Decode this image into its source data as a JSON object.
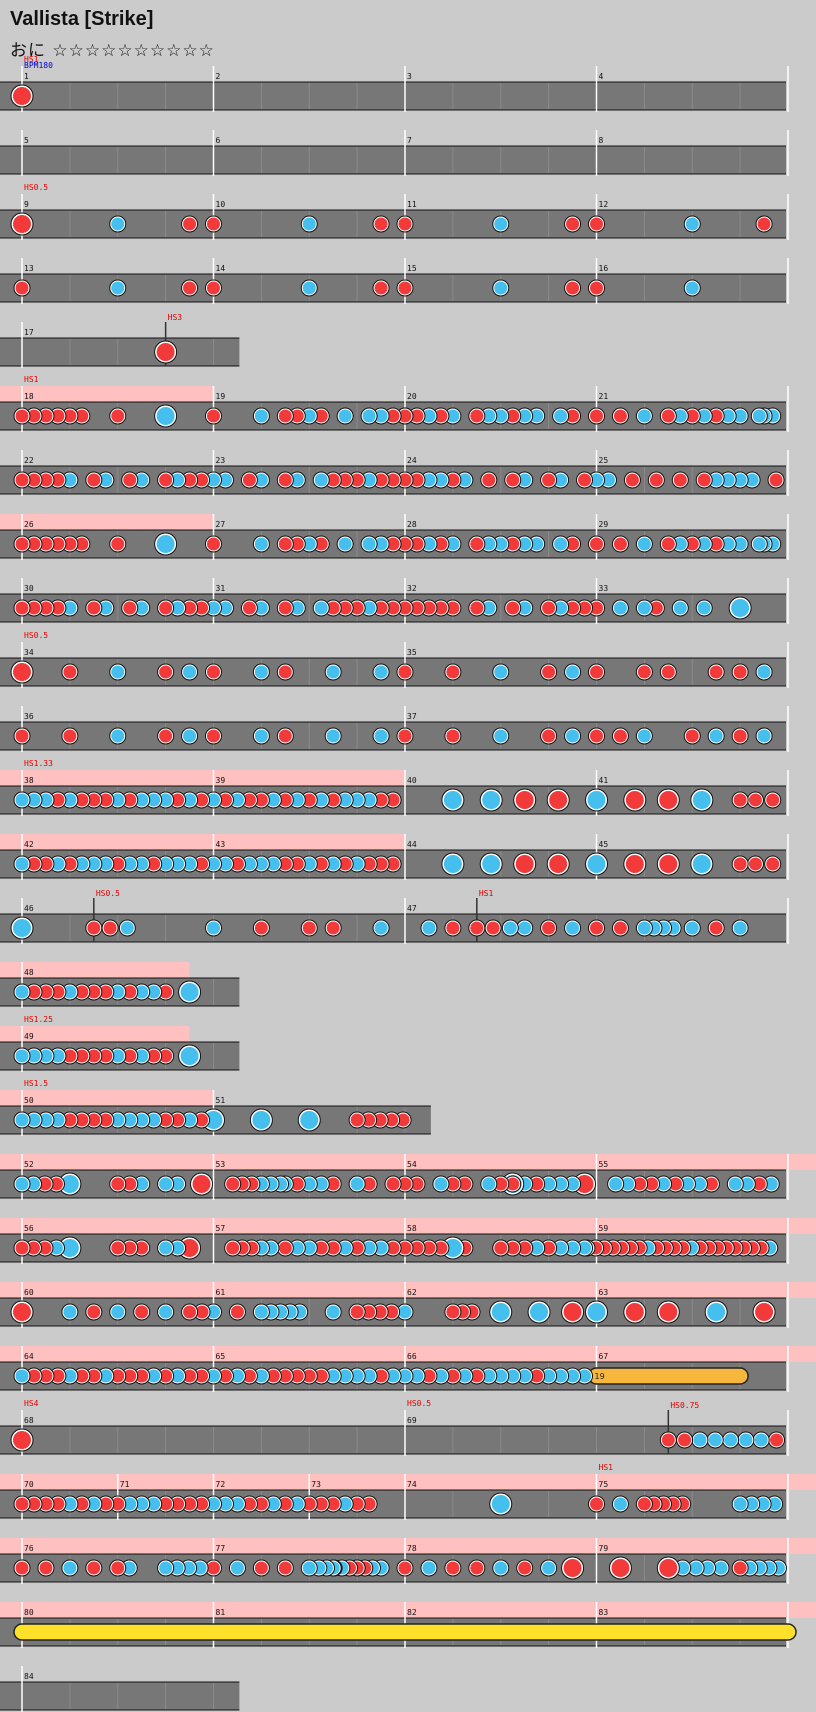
{
  "song": {
    "title": "Vallista [Strike]",
    "difficulty_label": "おに",
    "stars": "☆☆☆☆☆☆☆☆☆☆"
  },
  "colors": {
    "background": "#cbcbcb",
    "lane": "#777777",
    "don": "#f33a3a",
    "ka": "#44bfee",
    "gogo": "#ffc0c0",
    "drumroll": "#f6b73c",
    "balloon": "#ffe02a",
    "scroll_label": "#e00000",
    "bpm_label": "#0000cc"
  },
  "notes_legend": {
    "don": "red",
    "ka": "blue"
  },
  "rows": [
    {
      "measures": [
        1,
        2,
        3,
        4
      ],
      "width": 4,
      "labels": [
        {
          "t": "HS1",
          "m": 0,
          "c": "scroll"
        },
        {
          "t": "BPM180",
          "m": 0,
          "c": "bpm"
        }
      ],
      "notes": [
        [
          0,
          "D"
        ]
      ]
    },
    {
      "measures": [
        5,
        6,
        7,
        8
      ],
      "width": 4,
      "labels": [],
      "notes": []
    },
    {
      "measures": [
        9,
        10,
        11,
        12
      ],
      "width": 4,
      "labels": [
        {
          "t": "HS0.5",
          "m": 0,
          "c": "scroll"
        }
      ],
      "notes": [
        [
          0,
          "D"
        ],
        [
          0.5,
          "k"
        ],
        [
          0.875,
          "d"
        ],
        [
          1,
          "d"
        ],
        [
          1.5,
          "k"
        ],
        [
          1.875,
          "d"
        ],
        [
          2,
          "d"
        ],
        [
          2.5,
          "k"
        ],
        [
          2.875,
          "d"
        ],
        [
          3,
          "d"
        ],
        [
          3.5,
          "k"
        ],
        [
          3.875,
          "d"
        ]
      ]
    },
    {
      "measures": [
        13,
        14,
        15,
        16
      ],
      "width": 4,
      "labels": [],
      "notes": [
        [
          0,
          "d"
        ],
        [
          0.5,
          "k"
        ],
        [
          0.875,
          "d"
        ],
        [
          1,
          "d"
        ],
        [
          1.5,
          "k"
        ],
        [
          1.875,
          "d"
        ],
        [
          2,
          "d"
        ],
        [
          2.5,
          "k"
        ],
        [
          2.875,
          "d"
        ],
        [
          3,
          "d"
        ],
        [
          3.5,
          "k"
        ]
      ]
    },
    {
      "measures": [
        17
      ],
      "width": 1.25,
      "labels": [
        {
          "t": "HS3",
          "m": 0.75,
          "c": "scroll",
          "tick": true
        }
      ],
      "notes": [
        [
          0.75,
          "D"
        ]
      ]
    },
    {
      "measures": [
        18,
        19,
        20,
        21
      ],
      "width": 4,
      "labels": [
        {
          "t": "HS1",
          "m": 0,
          "c": "scroll"
        }
      ],
      "gogo": [
        [
          0,
          1
        ]
      ],
      "notes": "A"
    },
    {
      "measures": [
        22,
        23,
        24,
        25
      ],
      "width": 4,
      "labels": [],
      "notes": "B"
    },
    {
      "measures": [
        26,
        27,
        28,
        29
      ],
      "width": 4,
      "labels": [],
      "gogo": [
        [
          0,
          1
        ]
      ],
      "notes": "A"
    },
    {
      "measures": [
        30,
        31,
        32,
        33
      ],
      "width": 4,
      "labels": [],
      "notes": "C"
    },
    {
      "measures": [
        34,
        35
      ],
      "width": 4,
      "measure_len": 2,
      "labels": [
        {
          "t": "HS0.5",
          "m": 0,
          "c": "scroll"
        }
      ],
      "notes": "E"
    },
    {
      "measures": [
        36,
        37
      ],
      "width": 4,
      "measure_len": 2,
      "labels": [],
      "notes": "F"
    },
    {
      "measures": [
        38,
        39,
        40,
        41
      ],
      "width": 4,
      "labels": [
        {
          "t": "HS1.33",
          "m": 0,
          "c": "scroll"
        }
      ],
      "gogo": [
        [
          0,
          2
        ]
      ],
      "notes": "G"
    },
    {
      "measures": [
        42,
        43,
        44,
        45
      ],
      "width": 4,
      "labels": [],
      "gogo": [
        [
          0,
          2
        ]
      ],
      "notes": "H"
    },
    {
      "measures": [
        46,
        47
      ],
      "width": 4,
      "measure_len": 2,
      "labels": [
        {
          "t": "HS0.5",
          "m": 0.375,
          "c": "scroll",
          "tick": true
        },
        {
          "t": "HS1",
          "m": 2.375,
          "c": "scroll",
          "tick": true
        }
      ],
      "notes": "I"
    },
    {
      "measures": [
        48
      ],
      "width": 1.25,
      "labels": [],
      "gogo": [
        [
          0,
          0.875
        ]
      ],
      "notes": "J"
    },
    {
      "measures": [
        49
      ],
      "width": 1.25,
      "labels": [
        {
          "t": "HS1.25",
          "m": 0,
          "c": "scroll"
        }
      ],
      "gogo": [
        [
          0,
          0.875
        ]
      ],
      "notes": "J2"
    },
    {
      "measures": [
        50,
        51
      ],
      "width": 2.25,
      "labels": [
        {
          "t": "HS1.5",
          "m": 0,
          "c": "scroll"
        }
      ],
      "gogo": [
        [
          0,
          1
        ]
      ],
      "notes": "K"
    },
    {
      "measures": [
        52,
        53,
        54,
        55
      ],
      "width": 4,
      "labels": [],
      "gogo": [
        [
          0,
          4.3
        ]
      ],
      "notes": "L"
    },
    {
      "measures": [
        56,
        57,
        58,
        59
      ],
      "width": 4,
      "labels": [],
      "gogo": [
        [
          0,
          4.3
        ]
      ],
      "notes": "M"
    },
    {
      "measures": [
        60,
        61,
        62,
        63
      ],
      "width": 4,
      "labels": [],
      "gogo": [
        [
          0,
          4.3
        ]
      ],
      "notes": "N"
    },
    {
      "measures": [
        64,
        65,
        66,
        67
      ],
      "width": 4,
      "labels": [],
      "gogo": [
        [
          0,
          4.3
        ]
      ],
      "notes": "O",
      "roll": [
        3,
        3.75,
        "drumroll"
      ],
      "roll_label": "19"
    },
    {
      "measures": [
        68,
        69
      ],
      "width": 4,
      "measure_len": 2,
      "labels": [
        {
          "t": "HS4",
          "m": 0,
          "c": "scroll"
        },
        {
          "t": "HS0.5",
          "m": 2,
          "c": "scroll"
        },
        {
          "t": "HS0.75",
          "m": 3.375,
          "c": "scroll",
          "tick": true
        }
      ],
      "notes": "P"
    },
    {
      "measures": [
        70,
        71,
        72,
        73,
        74,
        75
      ],
      "width": 4,
      "custom_bars": [
        0,
        0.5,
        1,
        1.5,
        2,
        3
      ],
      "labels": [
        {
          "t": "HS1",
          "m": 3,
          "c": "scroll"
        }
      ],
      "gogo": [
        [
          0,
          4.3
        ]
      ],
      "notes": "Q"
    },
    {
      "measures": [
        76,
        77,
        78,
        79
      ],
      "width": 4,
      "labels": [],
      "gogo": [
        [
          0,
          4.3
        ]
      ],
      "notes": "R"
    },
    {
      "measures": [
        80,
        81,
        82,
        83
      ],
      "width": 4,
      "labels": [],
      "gogo": [
        [
          0,
          4.3
        ]
      ],
      "notes": [],
      "roll": [
        0,
        4,
        "balloon"
      ]
    },
    {
      "measures": [
        84
      ],
      "width": 1.25,
      "labels": [],
      "notes": []
    }
  ]
}
